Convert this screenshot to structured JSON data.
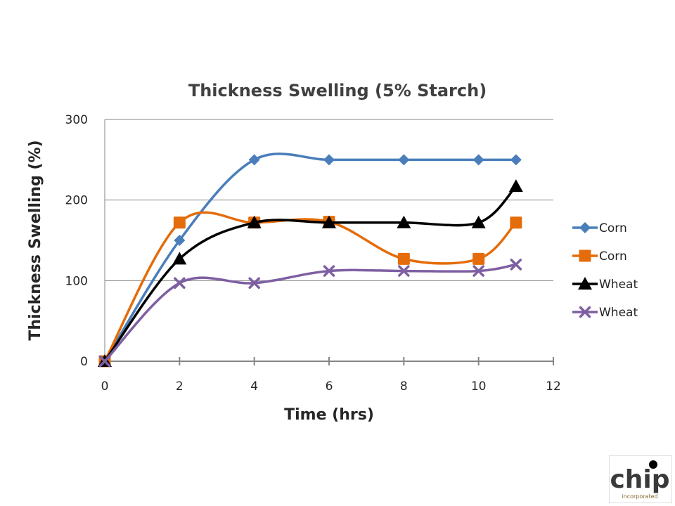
{
  "chart_data": {
    "type": "line",
    "title": "Thickness Swelling (5% Starch)",
    "xlabel": "Time (hrs)",
    "ylabel": "Thickness Swelling (%)",
    "xlim": [
      0,
      12
    ],
    "ylim": [
      0,
      300
    ],
    "xticks": [
      0,
      2,
      4,
      6,
      8,
      10,
      12
    ],
    "yticks": [
      0,
      100,
      200,
      300
    ],
    "grid": "horizontal",
    "legend": "right",
    "smooth": true,
    "series": [
      {
        "name": "Corn",
        "color": "#4A7EBB",
        "marker": "diamond",
        "x": [
          0,
          2,
          4,
          6,
          8,
          10,
          11
        ],
        "y": [
          0,
          150,
          250,
          250,
          250,
          250,
          250
        ]
      },
      {
        "name": "Corn",
        "color": "#E46C0A",
        "marker": "square",
        "x": [
          0,
          2,
          4,
          6,
          8,
          10,
          11
        ],
        "y": [
          0,
          172,
          172,
          173,
          127,
          127,
          172
        ]
      },
      {
        "name": "Wheat",
        "color": "#000000",
        "marker": "triangle",
        "x": [
          0,
          2,
          4,
          6,
          8,
          10,
          11
        ],
        "y": [
          0,
          127,
          172,
          172,
          172,
          172,
          217
        ]
      },
      {
        "name": "Wheat",
        "color": "#7E5FA2",
        "marker": "x",
        "x": [
          0,
          2,
          4,
          6,
          8,
          10,
          11
        ],
        "y": [
          0,
          97,
          97,
          112,
          112,
          112,
          120
        ]
      }
    ]
  },
  "logo": {
    "name": "chip",
    "text": "chip",
    "tagline": "incorporated",
    "icon": "chip-logo-icon"
  }
}
